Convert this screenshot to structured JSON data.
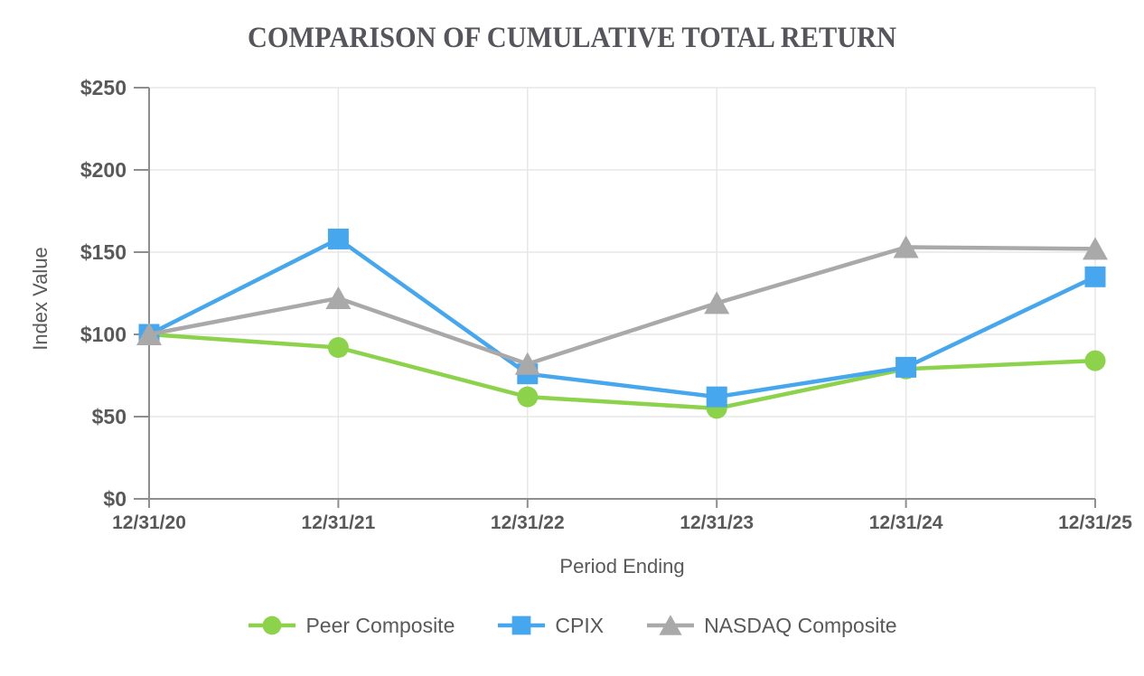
{
  "page": {
    "background": "#FFFFFF"
  },
  "chart_data": {
    "type": "line",
    "title": "COMPARISON OF CUMULATIVE TOTAL RETURN",
    "xlabel": "Period Ending",
    "ylabel": "Index Value",
    "categories": [
      "12/31/20",
      "12/31/21",
      "12/31/22",
      "12/31/23",
      "12/31/24",
      "12/31/25"
    ],
    "series": [
      {
        "name": "Peer Composite",
        "marker": "circle",
        "color": "#8CD24B",
        "values": [
          100,
          92,
          62,
          55,
          79,
          84
        ]
      },
      {
        "name": "CPIX",
        "marker": "square",
        "color": "#46A7EE",
        "values": [
          100,
          158,
          76,
          62,
          80,
          135
        ]
      },
      {
        "name": "NASDAQ Composite",
        "marker": "triangle",
        "color": "#A9A9A9",
        "values": [
          100,
          122,
          82,
          119,
          153,
          152
        ]
      }
    ],
    "yticks": [
      {
        "label": "$0",
        "value": 0
      },
      {
        "label": "$50",
        "value": 50
      },
      {
        "label": "$100",
        "value": 100
      },
      {
        "label": "$150",
        "value": 150
      },
      {
        "label": "$200",
        "value": 200
      },
      {
        "label": "$250",
        "value": 250
      }
    ],
    "ylim": [
      0,
      250
    ],
    "grid": true,
    "legend_position": "bottom"
  },
  "colors": {
    "text": "#595959",
    "title_text": "#55555B",
    "gridline": "#E7E7E7",
    "axis": "#8E8E8E"
  }
}
